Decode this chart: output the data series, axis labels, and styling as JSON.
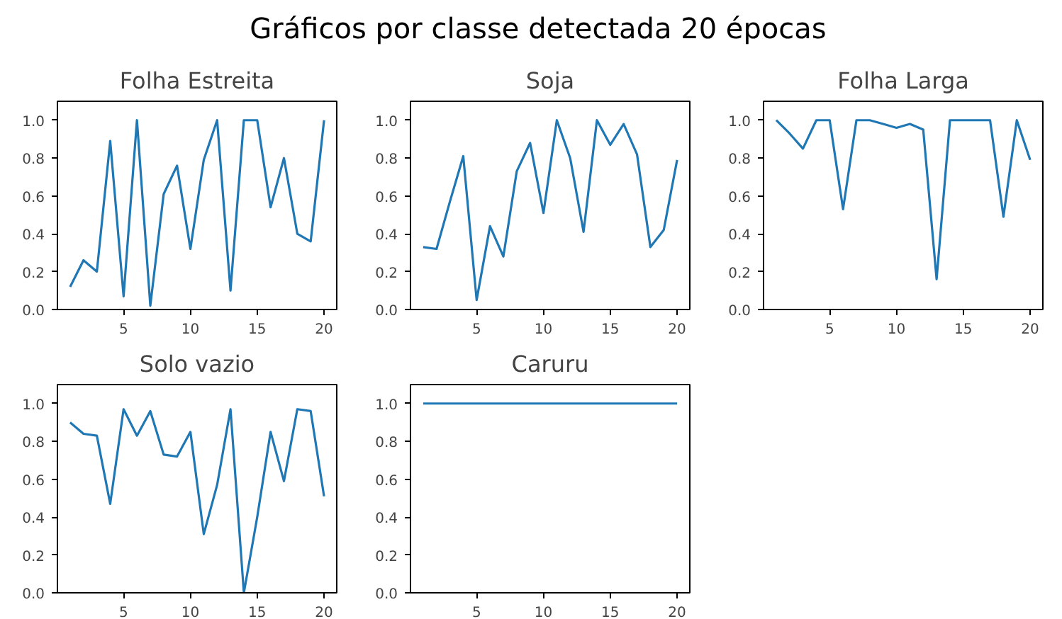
{
  "chart_data": [
    {
      "type": "other",
      "title": "Gráficos por classe detectada 20 épocas"
    },
    {
      "type": "line",
      "title": "Folha Estreita",
      "x": [
        1,
        2,
        3,
        4,
        5,
        6,
        7,
        8,
        9,
        10,
        11,
        12,
        13,
        14,
        15,
        16,
        17,
        18,
        19,
        20
      ],
      "series": [
        {
          "color": "#1f77b4",
          "values": [
            0.12,
            0.26,
            0.2,
            0.89,
            0.07,
            1.0,
            0.02,
            0.61,
            0.76,
            0.32,
            0.79,
            1.0,
            0.1,
            1.0,
            1.0,
            0.54,
            0.8,
            0.4,
            0.36,
            1.0
          ]
        }
      ],
      "xlim": [
        0.05,
        20.95
      ],
      "xticks": [
        5,
        10,
        15,
        20
      ],
      "ylim": [
        0,
        1.1
      ],
      "yticks": [
        {
          "value": 0,
          "label": "0.0"
        },
        {
          "value": 0.2,
          "label": "0.2"
        },
        {
          "value": 0.4,
          "label": "0.4"
        },
        {
          "value": 0.6,
          "label": "0.6"
        },
        {
          "value": 0.8,
          "label": "0.8"
        },
        {
          "value": 1,
          "label": "1.0"
        }
      ],
      "grid": false
    },
    {
      "type": "line",
      "title": "Soja",
      "x": [
        1,
        2,
        3,
        4,
        5,
        6,
        7,
        8,
        9,
        10,
        11,
        12,
        13,
        14,
        15,
        16,
        17,
        18,
        19,
        20
      ],
      "series": [
        {
          "color": "#1f77b4",
          "values": [
            0.33,
            0.32,
            0.57,
            0.81,
            0.05,
            0.44,
            0.28,
            0.73,
            0.88,
            0.51,
            1.0,
            0.8,
            0.41,
            1.0,
            0.87,
            0.98,
            0.82,
            0.33,
            0.42,
            0.79
          ]
        }
      ],
      "xlim": [
        0.05,
        20.95
      ],
      "xticks": [
        5,
        10,
        15,
        20
      ],
      "ylim": [
        0,
        1.1
      ],
      "yticks": [
        {
          "value": 0,
          "label": "0.0"
        },
        {
          "value": 0.2,
          "label": "0.2"
        },
        {
          "value": 0.4,
          "label": "0.4"
        },
        {
          "value": 0.6,
          "label": "0.6"
        },
        {
          "value": 0.8,
          "label": "0.8"
        },
        {
          "value": 1,
          "label": "1.0"
        }
      ],
      "grid": false
    },
    {
      "type": "line",
      "title": "Folha Larga",
      "x": [
        1,
        2,
        3,
        4,
        5,
        6,
        7,
        8,
        9,
        10,
        11,
        12,
        13,
        14,
        15,
        16,
        17,
        18,
        19,
        20
      ],
      "series": [
        {
          "color": "#1f77b4",
          "values": [
            1.0,
            0.93,
            0.85,
            1.0,
            1.0,
            0.53,
            1.0,
            1.0,
            0.98,
            0.96,
            0.98,
            0.95,
            0.16,
            1.0,
            1.0,
            1.0,
            1.0,
            0.49,
            1.0,
            0.79
          ]
        }
      ],
      "xlim": [
        0.05,
        20.95
      ],
      "xticks": [
        5,
        10,
        15,
        20
      ],
      "ylim": [
        0,
        1.1
      ],
      "yticks": [
        {
          "value": 0,
          "label": "0.0"
        },
        {
          "value": 0.2,
          "label": "0.2"
        },
        {
          "value": 0.4,
          "label": "0.4"
        },
        {
          "value": 0.6,
          "label": "0.6"
        },
        {
          "value": 0.8,
          "label": "0.8"
        },
        {
          "value": 1,
          "label": "1.0"
        }
      ],
      "grid": false
    },
    {
      "type": "line",
      "title": "Solo vazio",
      "x": [
        1,
        2,
        3,
        4,
        5,
        6,
        7,
        8,
        9,
        10,
        11,
        12,
        13,
        14,
        15,
        16,
        17,
        18,
        19,
        20
      ],
      "series": [
        {
          "color": "#1f77b4",
          "values": [
            0.9,
            0.84,
            0.83,
            0.47,
            0.97,
            0.83,
            0.96,
            0.73,
            0.72,
            0.85,
            0.31,
            0.57,
            0.97,
            0.0,
            0.4,
            0.85,
            0.59,
            0.97,
            0.96,
            0.51
          ]
        }
      ],
      "xlim": [
        0.05,
        20.95
      ],
      "xticks": [
        5,
        10,
        15,
        20
      ],
      "ylim": [
        0,
        1.1
      ],
      "yticks": [
        {
          "value": 0,
          "label": "0.0"
        },
        {
          "value": 0.2,
          "label": "0.2"
        },
        {
          "value": 0.4,
          "label": "0.4"
        },
        {
          "value": 0.6,
          "label": "0.6"
        },
        {
          "value": 0.8,
          "label": "0.8"
        },
        {
          "value": 1,
          "label": "1.0"
        }
      ],
      "grid": false
    },
    {
      "type": "line",
      "title": "Caruru",
      "x": [
        1,
        2,
        3,
        4,
        5,
        6,
        7,
        8,
        9,
        10,
        11,
        12,
        13,
        14,
        15,
        16,
        17,
        18,
        19,
        20
      ],
      "series": [
        {
          "color": "#1f77b4",
          "values": [
            1.0,
            1.0,
            1.0,
            1.0,
            1.0,
            1.0,
            1.0,
            1.0,
            1.0,
            1.0,
            1.0,
            1.0,
            1.0,
            1.0,
            1.0,
            1.0,
            1.0,
            1.0,
            1.0,
            1.0
          ]
        }
      ],
      "xlim": [
        0.05,
        20.95
      ],
      "xticks": [
        5,
        10,
        15,
        20
      ],
      "ylim": [
        0,
        1.1
      ],
      "yticks": [
        {
          "value": 0,
          "label": "0.0"
        },
        {
          "value": 0.2,
          "label": "0.2"
        },
        {
          "value": 0.4,
          "label": "0.4"
        },
        {
          "value": 0.6,
          "label": "0.6"
        },
        {
          "value": 0.8,
          "label": "0.8"
        },
        {
          "value": 1,
          "label": "1.0"
        }
      ],
      "grid": false
    }
  ]
}
